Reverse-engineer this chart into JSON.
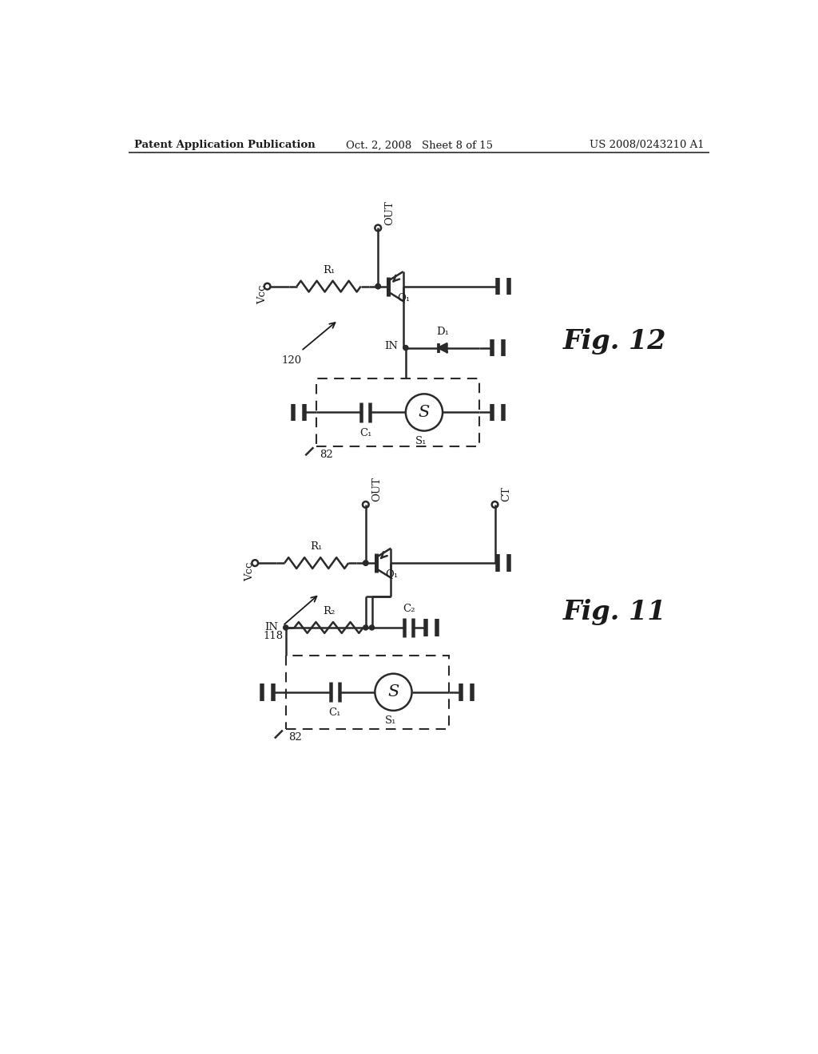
{
  "bg_color": "#ffffff",
  "line_color": "#2a2a2a",
  "text_color": "#1a1a1a",
  "header_left": "Patent Application Publication",
  "header_center": "Oct. 2, 2008   Sheet 8 of 15",
  "header_right": "US 2008/0243210 A1",
  "fig12_label": "Fig. 12",
  "fig11_label": "Fig. 11",
  "fig12_number": "120",
  "fig11_number": "118",
  "box82_label1": "82",
  "box82_label2": "82",
  "C1_label1": "C₁",
  "S1_label1": "S₁",
  "C1_label2": "C₁",
  "S1_label2": "S₁",
  "C2_label": "C₂",
  "R1_label1": "R₁",
  "R1_label2": "R₁",
  "R2_label": "R₂",
  "Q1_label1": "Q₁",
  "Q1_label2": "Q₁",
  "D1_label": "D₁",
  "Vcc_label1": "Vcc",
  "Vcc_label2": "Vcc",
  "OUT_label1": "OUT",
  "OUT_label2": "OUT",
  "IN_label1": "IN",
  "IN_label2": "IN",
  "CT_label": "CT"
}
